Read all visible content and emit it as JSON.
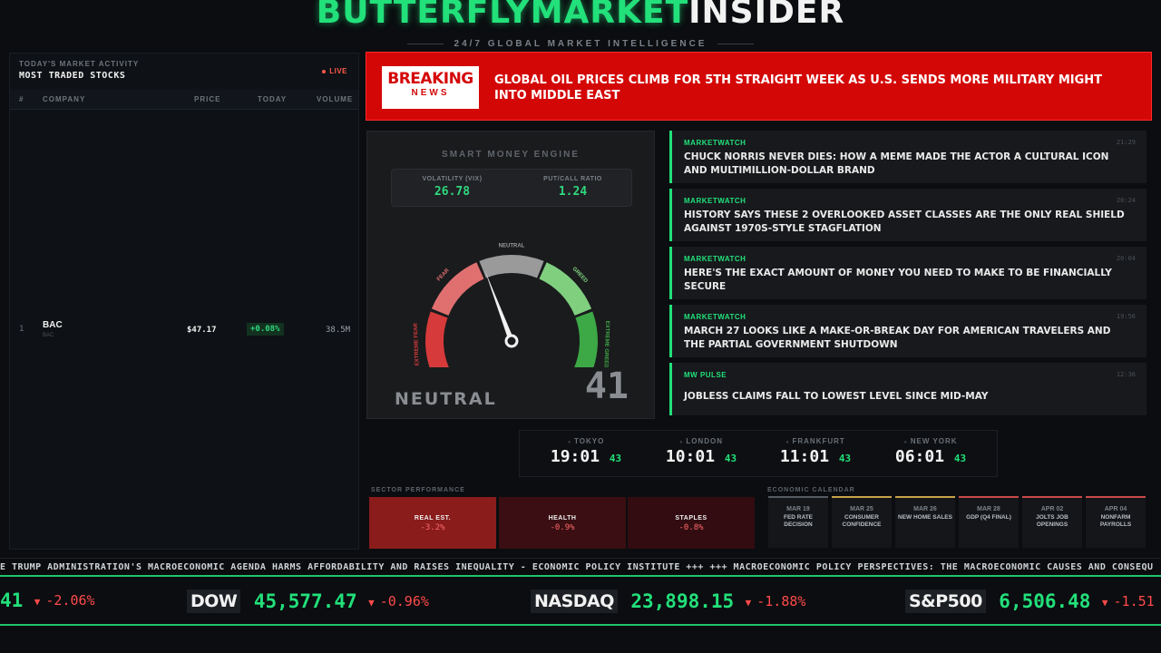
{
  "header": {
    "brand_green": "BUTTERFLYMARKET",
    "brand_white": "INSIDER",
    "tagline": "24/7 GLOBAL MARKET INTELLIGENCE"
  },
  "stocks": {
    "subtitle": "TODAY'S MARKET ACTIVITY",
    "title": "MOST TRADED STOCKS",
    "live_label": "LIVE",
    "columns": [
      "#",
      "COMPANY",
      "PRICE",
      "TODAY",
      "VOLUME"
    ],
    "rows": [
      {
        "num": "1",
        "company": "BAC",
        "ticker": "BAC",
        "price": "$47.17",
        "change": "+0.08%",
        "volume": "38.5M"
      }
    ]
  },
  "breaking": {
    "badge_top": "BREAKING",
    "badge_bottom": "NEWS",
    "headline": "GLOBAL OIL PRICES CLIMB FOR 5TH STRAIGHT WEEK AS U.S. SENDS MORE MILITARY MIGHT INTO MIDDLE EAST"
  },
  "gauge": {
    "engine_label": "SMART MONEY ENGINE",
    "vix_label": "VOLATILITY (VIX)",
    "vix_value": "26.78",
    "pcr_label": "PUT/CALL RATIO",
    "pcr_value": "1.24",
    "zones": [
      "EXTREME FEAR",
      "FEAR",
      "NEUTRAL",
      "GREED",
      "EXTREME GREED"
    ],
    "zone_colors": [
      "#d63a3a",
      "#e07070",
      "#9a9a9a",
      "#7fcf7f",
      "#3da846"
    ],
    "state": "NEUTRAL",
    "score": "41",
    "score_value": 41
  },
  "news": [
    {
      "source": "MARKETWATCH",
      "time": "21:29",
      "headline": "CHUCK NORRIS NEVER DIES: HOW A MEME MADE THE ACTOR A CULTURAL ICON AND MULTIMILLION-DOLLAR BRAND"
    },
    {
      "source": "MARKETWATCH",
      "time": "20:24",
      "headline": "HISTORY SAYS THESE 2 OVERLOOKED ASSET CLASSES ARE THE ONLY REAL SHIELD AGAINST 1970S-STYLE STAGFLATION"
    },
    {
      "source": "MARKETWATCH",
      "time": "20:04",
      "headline": "HERE'S THE EXACT AMOUNT OF MONEY YOU NEED TO MAKE TO BE FINANCIALLY SECURE"
    },
    {
      "source": "MARKETWATCH",
      "time": "19:56",
      "headline": "MARCH 27 LOOKS LIKE A MAKE-OR-BREAK DAY FOR AMERICAN TRAVELERS AND THE PARTIAL GOVERNMENT SHUTDOWN"
    },
    {
      "source": "MW PULSE",
      "time": "12:36",
      "headline": "JOBLESS CLAIMS FALL TO LOWEST LEVEL SINCE MID-MAY"
    }
  ],
  "clocks": [
    {
      "city": "TOKYO",
      "time": "19:01",
      "sec": "43"
    },
    {
      "city": "LONDON",
      "time": "10:01",
      "sec": "43"
    },
    {
      "city": "FRANKFURT",
      "time": "11:01",
      "sec": "43"
    },
    {
      "city": "NEW YORK",
      "time": "06:01",
      "sec": "43"
    }
  ],
  "sectors": {
    "label": "SECTOR PERFORMANCE",
    "items": [
      {
        "name": "REAL EST.",
        "value": "-3.2%"
      },
      {
        "name": "HEALTH",
        "value": "-0.9%"
      },
      {
        "name": "STAPLES",
        "value": "-0.8%"
      }
    ]
  },
  "calendar": {
    "label": "ECONOMIC CALENDAR",
    "items": [
      {
        "date": "MAR 19",
        "event": "FED RATE DECISION",
        "color": "#555b62"
      },
      {
        "date": "MAR 25",
        "event": "CONSUMER CONFIDENCE",
        "color": "#c9a24a"
      },
      {
        "date": "MAR 26",
        "event": "NEW HOME SALES",
        "color": "#c9a24a"
      },
      {
        "date": "MAR 28",
        "event": "GDP (Q4 FINAL)",
        "color": "#c94a4a"
      },
      {
        "date": "APR 02",
        "event": "JOLTS JOB OPENINGS",
        "color": "#c94a4a"
      },
      {
        "date": "APR 04",
        "event": "NONFARM PAYROLLS",
        "color": "#c94a4a"
      }
    ]
  },
  "crawl": "E TRUMP ADMINISTRATION'S MACROECONOMIC AGENDA HARMS AFFORDABILITY AND RAISES INEQUALITY - ECONOMIC POLICY INSTITUTE +++ +++ MACROECONOMIC POLICY PERSPECTIVES: THE MACROECONOMIC CAUSES AND CONSEQU",
  "ticker": [
    {
      "symbol": "",
      "value": "41",
      "change": "-2.06%"
    },
    {
      "symbol": "DOW",
      "value": "45,577.47",
      "change": "-0.96%"
    },
    {
      "symbol": "NASDAQ",
      "value": "23,898.15",
      "change": "-1.88%"
    },
    {
      "symbol": "S&P500",
      "value": "6,506.48",
      "change": "-1.51"
    }
  ]
}
